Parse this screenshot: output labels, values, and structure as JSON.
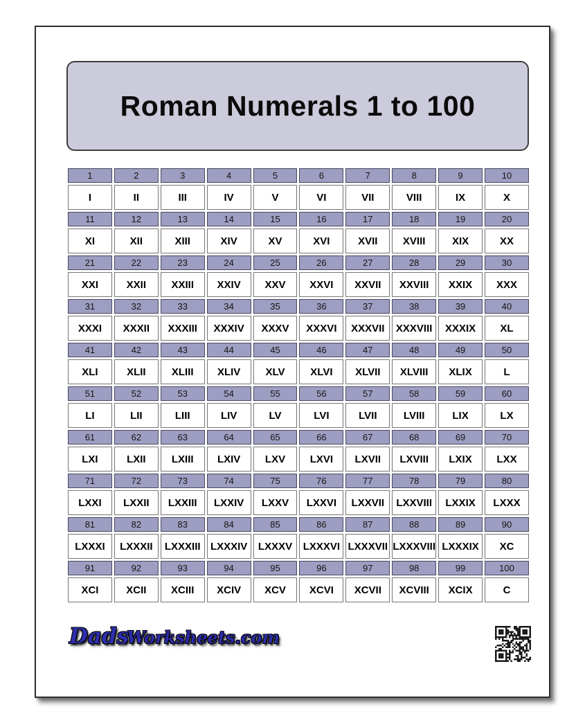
{
  "title": "Roman Numerals 1 to 100",
  "table": {
    "rows": [
      {
        "arabic": [
          "1",
          "2",
          "3",
          "4",
          "5",
          "6",
          "7",
          "8",
          "9",
          "10"
        ],
        "roman": [
          "I",
          "II",
          "III",
          "IV",
          "V",
          "VI",
          "VII",
          "VIII",
          "IX",
          "X"
        ]
      },
      {
        "arabic": [
          "11",
          "12",
          "13",
          "14",
          "15",
          "16",
          "17",
          "18",
          "19",
          "20"
        ],
        "roman": [
          "XI",
          "XII",
          "XIII",
          "XIV",
          "XV",
          "XVI",
          "XVII",
          "XVIII",
          "XIX",
          "XX"
        ]
      },
      {
        "arabic": [
          "21",
          "22",
          "23",
          "24",
          "25",
          "26",
          "27",
          "28",
          "29",
          "30"
        ],
        "roman": [
          "XXI",
          "XXII",
          "XXIII",
          "XXIV",
          "XXV",
          "XXVI",
          "XXVII",
          "XXVIII",
          "XXIX",
          "XXX"
        ]
      },
      {
        "arabic": [
          "31",
          "32",
          "33",
          "34",
          "35",
          "36",
          "37",
          "38",
          "39",
          "40"
        ],
        "roman": [
          "XXXI",
          "XXXII",
          "XXXIII",
          "XXXIV",
          "XXXV",
          "XXXVI",
          "XXXVII",
          "XXXVIII",
          "XXXIX",
          "XL"
        ]
      },
      {
        "arabic": [
          "41",
          "42",
          "43",
          "44",
          "45",
          "46",
          "47",
          "48",
          "49",
          "50"
        ],
        "roman": [
          "XLI",
          "XLII",
          "XLIII",
          "XLIV",
          "XLV",
          "XLVI",
          "XLVII",
          "XLVIII",
          "XLIX",
          "L"
        ]
      },
      {
        "arabic": [
          "51",
          "52",
          "53",
          "54",
          "55",
          "56",
          "57",
          "58",
          "59",
          "60"
        ],
        "roman": [
          "LI",
          "LII",
          "LIII",
          "LIV",
          "LV",
          "LVI",
          "LVII",
          "LVIII",
          "LIX",
          "LX"
        ]
      },
      {
        "arabic": [
          "61",
          "62",
          "63",
          "64",
          "65",
          "66",
          "67",
          "68",
          "69",
          "70"
        ],
        "roman": [
          "LXI",
          "LXII",
          "LXIII",
          "LXIV",
          "LXV",
          "LXVI",
          "LXVII",
          "LXVIII",
          "LXIX",
          "LXX"
        ]
      },
      {
        "arabic": [
          "71",
          "72",
          "73",
          "74",
          "75",
          "76",
          "77",
          "78",
          "79",
          "80"
        ],
        "roman": [
          "LXXI",
          "LXXII",
          "LXXIII",
          "LXXIV",
          "LXXV",
          "LXXVI",
          "LXXVII",
          "LXXVIII",
          "LXXIX",
          "LXXX"
        ]
      },
      {
        "arabic": [
          "81",
          "82",
          "83",
          "84",
          "85",
          "86",
          "87",
          "88",
          "89",
          "90"
        ],
        "roman": [
          "LXXXI",
          "LXXXII",
          "LXXXIII",
          "LXXXIV",
          "LXXXV",
          "LXXXVI",
          "LXXXVII",
          "LXXXVIII",
          "LXXXIX",
          "XC"
        ]
      },
      {
        "arabic": [
          "91",
          "92",
          "93",
          "94",
          "95",
          "96",
          "97",
          "98",
          "99",
          "100"
        ],
        "roman": [
          "XCI",
          "XCII",
          "XCIII",
          "XCIV",
          "XCV",
          "XCVI",
          "XCVII",
          "XCVIII",
          "XCIX",
          "C"
        ]
      }
    ]
  },
  "footer": {
    "logo_part1": "Dads",
    "logo_part2": "Worksheets.com",
    "qr_icon": "qr-code"
  },
  "colors": {
    "arabic_row_bg": "#9e9ec2",
    "arabic_row_border": "#46465f",
    "roman_cell_border": "#757575",
    "title_panel_bg": "#cbcbdc",
    "page_border": "#2e2e2e",
    "logo_blue": "#2e2eae"
  }
}
